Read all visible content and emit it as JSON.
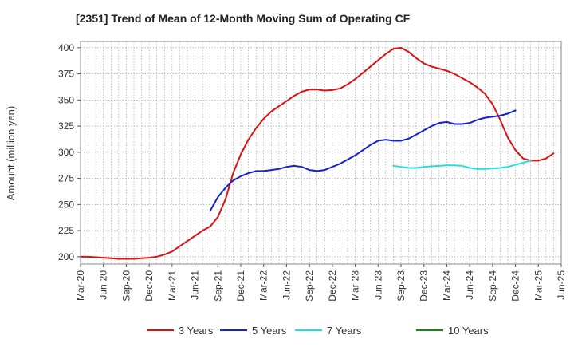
{
  "chart_data": {
    "type": "line",
    "title": "[2351]  Trend of Mean of 12-Month Moving Sum of Operating CF",
    "xlabel": "",
    "ylabel": "Amount (million yen)",
    "ylim": [
      193,
      406
    ],
    "yticks": [
      200,
      225,
      250,
      275,
      300,
      325,
      350,
      375,
      400
    ],
    "xticks": [
      "Mar-20",
      "Jun-20",
      "Sep-20",
      "Dec-20",
      "Mar-21",
      "Jun-21",
      "Sep-21",
      "Dec-21",
      "Mar-22",
      "Jun-22",
      "Sep-22",
      "Dec-22",
      "Mar-23",
      "Jun-23",
      "Sep-23",
      "Dec-23",
      "Mar-24",
      "Jun-24",
      "Sep-24",
      "Dec-24",
      "Mar-25",
      "Jun-25"
    ],
    "grid": true,
    "legend_position": "bottom",
    "series": [
      {
        "name": "3 Years",
        "color": "#dd1111",
        "start": "Mar-20",
        "values": [
          200,
          200,
          199.5,
          199,
          198.5,
          198,
          198,
          198,
          198.5,
          199,
          200,
          202,
          205,
          210,
          215,
          220,
          225,
          229,
          238,
          255,
          280,
          298,
          312,
          323,
          332,
          339,
          344,
          349,
          354,
          358,
          360,
          360,
          359,
          359.5,
          361,
          365,
          370,
          376,
          382,
          388,
          394,
          399,
          400,
          396,
          390,
          385,
          382,
          380,
          378,
          375,
          371,
          367,
          362,
          356,
          346,
          331,
          314,
          302,
          294,
          292,
          292,
          294,
          299
        ]
      },
      {
        "name": "5 Years",
        "color": "#1122cc",
        "start": "Aug-21",
        "values": [
          244,
          257,
          266,
          273,
          277,
          280,
          282,
          282,
          283,
          284,
          286,
          287,
          286,
          283,
          282,
          283,
          286,
          289,
          293,
          297,
          302,
          307,
          311,
          312,
          311,
          311,
          313,
          317,
          321,
          325,
          328,
          329,
          327,
          327,
          328,
          331,
          333,
          334,
          335,
          337,
          340
        ]
      },
      {
        "name": "7 Years",
        "color": "#22dddd",
        "start": "Aug-23",
        "values": [
          287,
          286,
          285,
          285,
          286,
          286.5,
          287,
          287.5,
          287.5,
          287,
          285,
          284,
          284,
          284.5,
          285,
          286,
          288,
          290,
          292
        ]
      },
      {
        "name": "10 Years",
        "color": "#118811",
        "start": "Mar-25",
        "values": []
      }
    ]
  }
}
